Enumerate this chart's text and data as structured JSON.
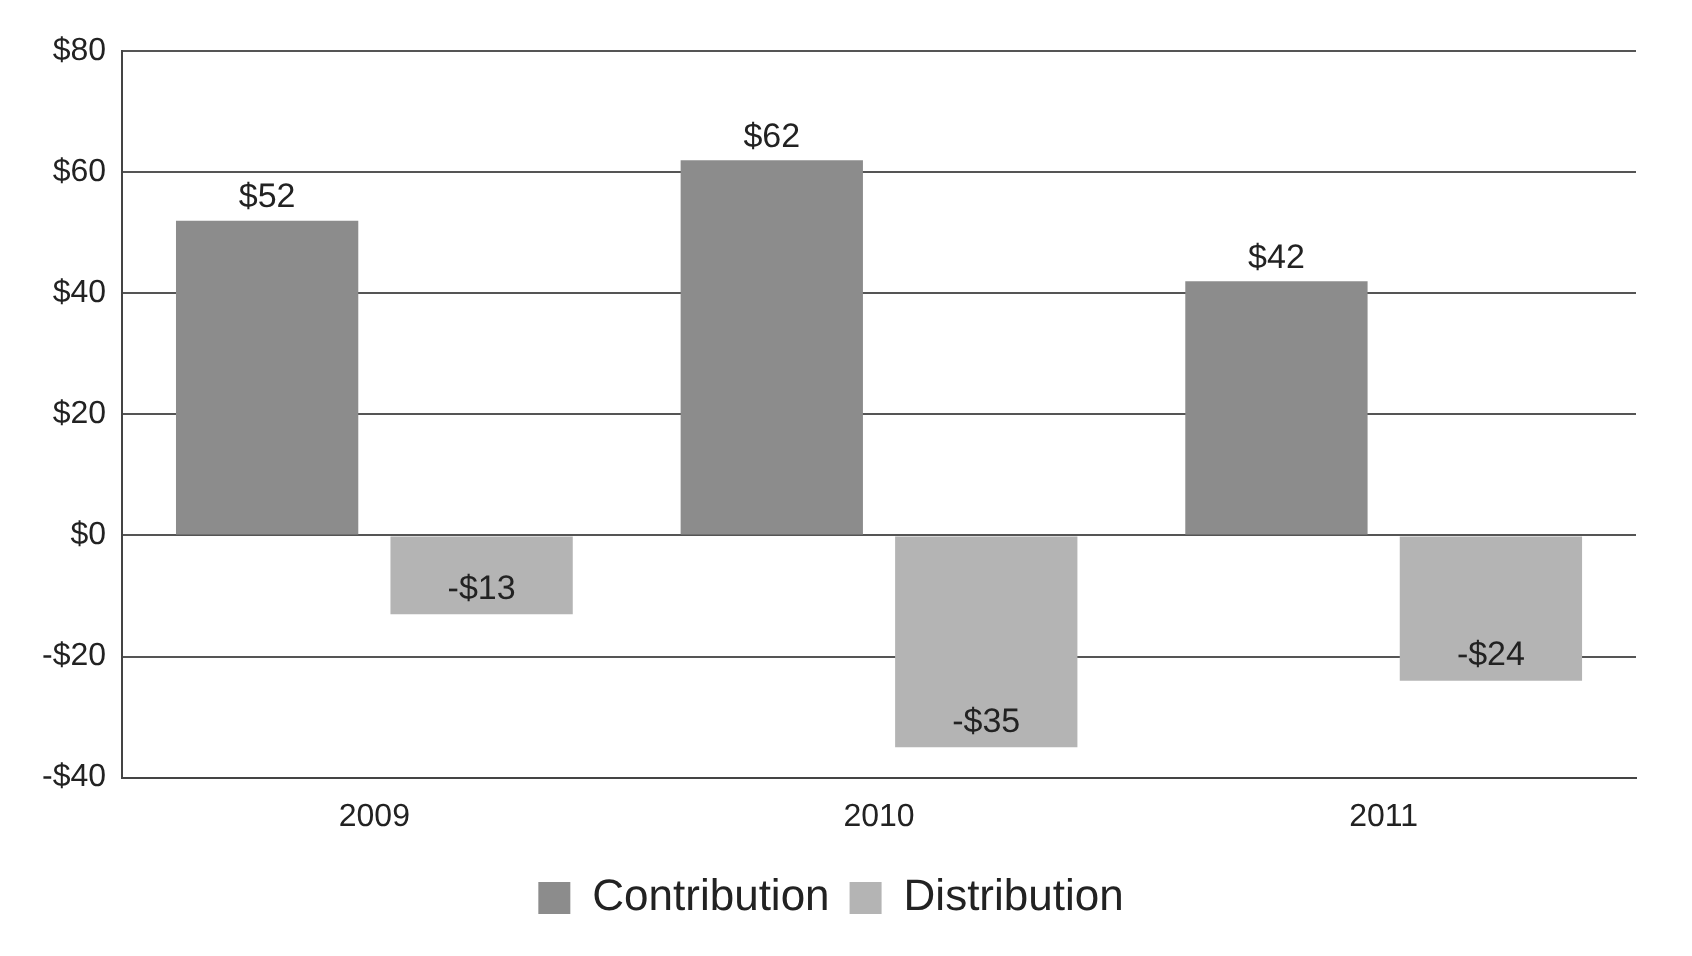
{
  "chart_data": {
    "type": "bar",
    "categories": [
      "2009",
      "2010",
      "2011"
    ],
    "series": [
      {
        "name": "Contribution",
        "color": "#8c8c8c",
        "values": [
          52,
          62,
          42
        ],
        "value_labels": [
          "$52",
          "$62",
          "$42"
        ]
      },
      {
        "name": "Distribution",
        "color": "#b4b4b4",
        "values": [
          -13,
          -35,
          -24
        ],
        "value_labels": [
          "-$13",
          "-$35",
          "-$24"
        ]
      }
    ],
    "ylim": [
      -40,
      80
    ],
    "yticks": [
      {
        "value": -40,
        "label": "-$40"
      },
      {
        "value": -20,
        "label": "-$20"
      },
      {
        "value": 0,
        "label": "$0"
      },
      {
        "value": 20,
        "label": "$20"
      },
      {
        "value": 40,
        "label": "$40"
      },
      {
        "value": 60,
        "label": "$60"
      },
      {
        "value": 80,
        "label": "$80"
      }
    ],
    "grid": "y",
    "legend": "bottom"
  }
}
